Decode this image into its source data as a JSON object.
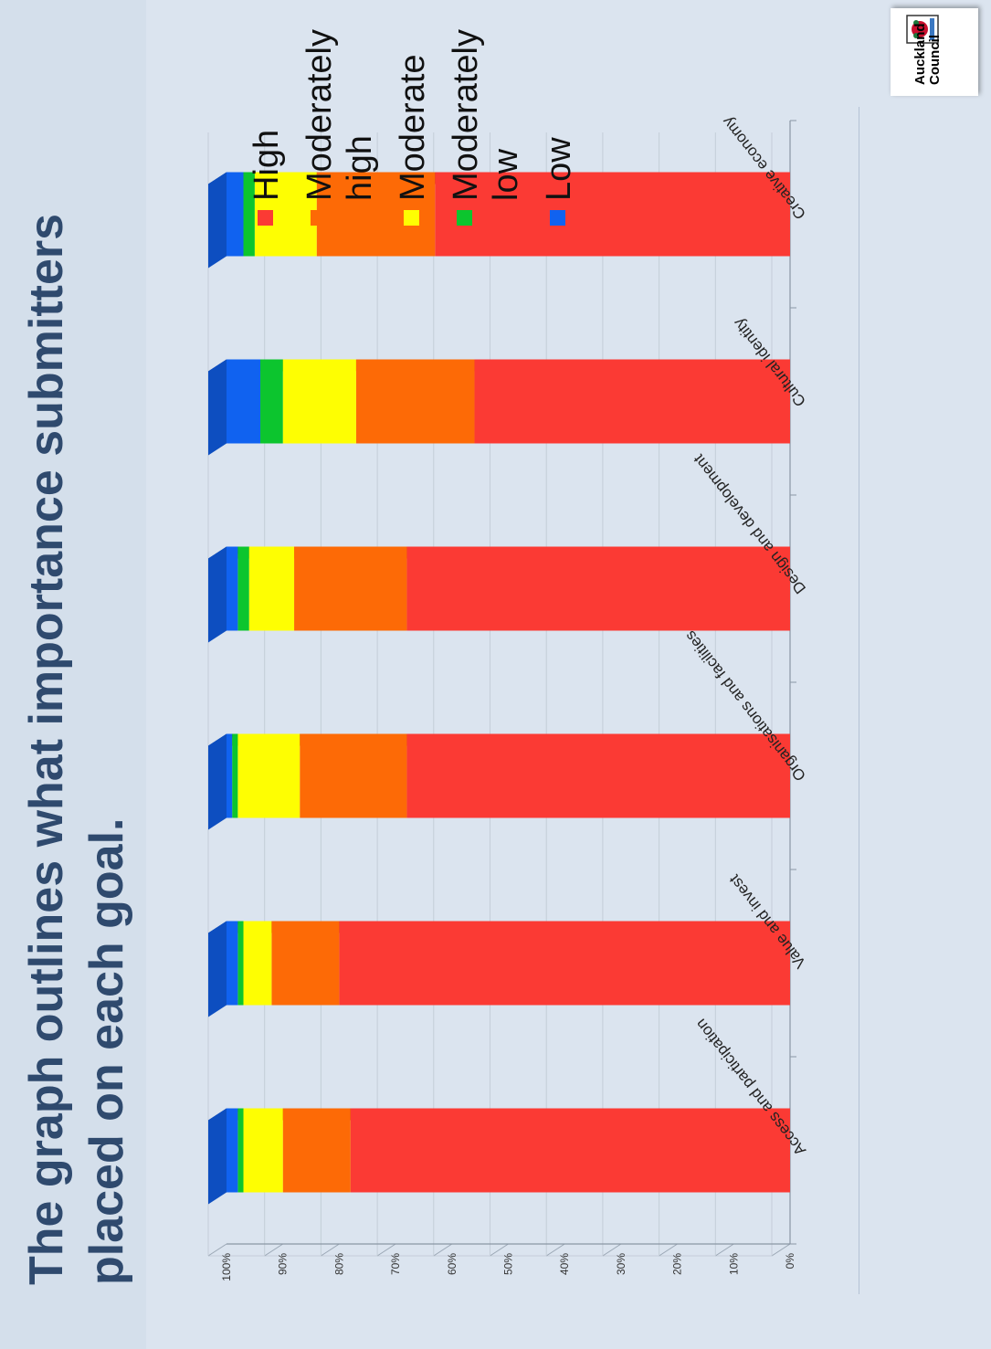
{
  "title": "The graph outlines what importance submitters placed on each goal.",
  "logo_text": "Auckland Council",
  "colors": {
    "High": "#fb3a34",
    "Moderately high": "#fd6a06",
    "Moderate": "#fefe02",
    "Moderately low": "#0cc52e",
    "Low": "#1062f0"
  },
  "chart_data": {
    "type": "bar",
    "stacked": true,
    "percent": true,
    "three_d": true,
    "orientation": "vertical",
    "title": "",
    "xlabel": "",
    "ylabel": "",
    "ylim": [
      0,
      100
    ],
    "yticks": [
      "0%",
      "10%",
      "20%",
      "30%",
      "40%",
      "50%",
      "60%",
      "70%",
      "80%",
      "90%",
      "100%"
    ],
    "grid": true,
    "legend": "right",
    "categories": [
      "Access and participation",
      "Value and invest",
      "Organisations and facilities",
      "Design and development",
      "Cultural identity",
      "Creative economy"
    ],
    "series": [
      {
        "name": "High",
        "values": [
          78,
          80,
          68,
          68,
          56,
          63
        ]
      },
      {
        "name": "Moderately high",
        "values": [
          12,
          12,
          19,
          20,
          21,
          21
        ]
      },
      {
        "name": "Moderate",
        "values": [
          7,
          5,
          11,
          8,
          13,
          11
        ]
      },
      {
        "name": "Moderately low",
        "values": [
          1,
          1,
          1,
          2,
          4,
          2
        ]
      },
      {
        "name": "Low",
        "values": [
          2,
          2,
          1,
          2,
          6,
          3
        ]
      }
    ]
  }
}
